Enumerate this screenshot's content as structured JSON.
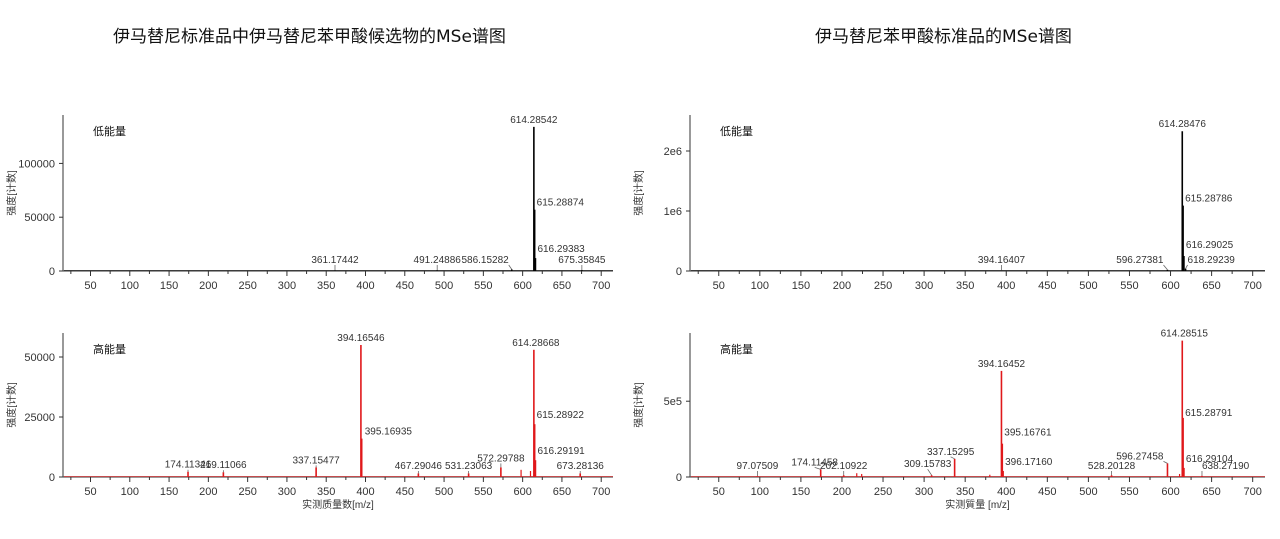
{
  "titles": {
    "left": "伊马替尼标准品中伊马替尼苯甲酸候选物的MSe谱图",
    "right": "伊马替尼苯甲酸标准品的MSe谱图"
  },
  "colors": {
    "low": "#000000",
    "high": "#e0181b",
    "axis": "#333333",
    "text": "#333333"
  },
  "chart_data": [
    {
      "type": "bar",
      "panel": "left-low",
      "panel_label": "低能量",
      "ylabel": "强度[计数]",
      "xlabel": "",
      "xlim": [
        15,
        715
      ],
      "ylim": [
        0,
        145000
      ],
      "xticks": [
        50,
        100,
        150,
        200,
        250,
        300,
        350,
        400,
        450,
        500,
        550,
        600,
        650,
        700
      ],
      "yticks": [
        0,
        50000,
        100000
      ],
      "ytick_labels": [
        "0",
        "50000",
        "100000"
      ],
      "peaks": [
        {
          "mz": 361.17442,
          "i": 600,
          "label": "361.17442"
        },
        {
          "mz": 491.24886,
          "i": 700,
          "label": "491.24886"
        },
        {
          "mz": 586.15282,
          "i": 1500,
          "label": "586.15282"
        },
        {
          "mz": 614.28542,
          "i": 134000,
          "label": "614.28542"
        },
        {
          "mz": 615.28874,
          "i": 57000,
          "label": "615.28874"
        },
        {
          "mz": 616.29383,
          "i": 12000,
          "label": "616.29383"
        },
        {
          "mz": 675.35845,
          "i": 800,
          "label": "675.35845"
        }
      ]
    },
    {
      "type": "bar",
      "panel": "left-high",
      "panel_label": "高能量",
      "ylabel": "强度[计数]",
      "xlabel": "实测质量数[m/z]",
      "xlim": [
        15,
        715
      ],
      "ylim": [
        0,
        60000
      ],
      "xticks": [
        50,
        100,
        150,
        200,
        250,
        300,
        350,
        400,
        450,
        500,
        550,
        600,
        650,
        700
      ],
      "yticks": [
        0,
        25000,
        50000
      ],
      "ytick_labels": [
        "0",
        "25000",
        "50000"
      ],
      "peaks": [
        {
          "mz": 174.11346,
          "i": 2200,
          "label": "174.11346"
        },
        {
          "mz": 219.11066,
          "i": 2000,
          "label": "219.11066"
        },
        {
          "mz": 337.15477,
          "i": 4000,
          "label": "337.15477"
        },
        {
          "mz": 394.16546,
          "i": 55000,
          "label": "394.16546"
        },
        {
          "mz": 395.16935,
          "i": 16000,
          "label": "395.16935"
        },
        {
          "mz": 467.29046,
          "i": 1500,
          "label": "467.29046"
        },
        {
          "mz": 531.23063,
          "i": 1500,
          "label": "531.23063"
        },
        {
          "mz": 572.29788,
          "i": 4000,
          "label": "572.29788"
        },
        {
          "mz": 614.28668,
          "i": 53000,
          "label": "614.28668"
        },
        {
          "mz": 615.28922,
          "i": 22000,
          "label": "615.28922"
        },
        {
          "mz": 616.29191,
          "i": 7000,
          "label": "616.29191"
        },
        {
          "mz": 673.28136,
          "i": 1500,
          "label": "673.28136"
        }
      ],
      "minor_peaks": [
        {
          "mz": 598,
          "i": 3000
        },
        {
          "mz": 610,
          "i": 2500
        }
      ]
    },
    {
      "type": "bar",
      "panel": "right-low",
      "panel_label": "低能量",
      "ylabel": "强度[计数]",
      "xlabel": "",
      "xlim": [
        15,
        715
      ],
      "ylim": [
        0,
        2600000
      ],
      "xticks": [
        50,
        100,
        150,
        200,
        250,
        300,
        350,
        400,
        450,
        500,
        550,
        600,
        650,
        700
      ],
      "yticks": [
        0,
        1000000,
        2000000
      ],
      "ytick_labels": [
        "0",
        "1e6",
        "2e6"
      ],
      "peaks": [
        {
          "mz": 394.16407,
          "i": 9000,
          "label": "394.16407"
        },
        {
          "mz": 596.27381,
          "i": 20000,
          "label": "596.27381"
        },
        {
          "mz": 614.28476,
          "i": 2330000,
          "label": "614.28476"
        },
        {
          "mz": 615.28786,
          "i": 1090000,
          "label": "615.28786"
        },
        {
          "mz": 616.29025,
          "i": 250000,
          "label": "616.29025"
        },
        {
          "mz": 618.29239,
          "i": 40000,
          "label": "618.29239"
        }
      ]
    },
    {
      "type": "bar",
      "panel": "right-high",
      "panel_label": "高能量",
      "ylabel": "强度[计数]",
      "xlabel": "实测質量 [m/z]",
      "xlim": [
        15,
        715
      ],
      "ylim": [
        0,
        950000
      ],
      "xticks": [
        50,
        100,
        150,
        200,
        250,
        300,
        350,
        400,
        450,
        500,
        550,
        600,
        650,
        700
      ],
      "yticks": [
        0,
        500000
      ],
      "ytick_labels": [
        "0",
        "5e5"
      ],
      "peaks": [
        {
          "mz": 97.07509,
          "i": 6000,
          "label": "97.07509"
        },
        {
          "mz": 174.11458,
          "i": 50000,
          "label": "174.11458"
        },
        {
          "mz": 202.10922,
          "i": 12000,
          "label": "202.10922"
        },
        {
          "mz": 309.15783,
          "i": 12000,
          "label": "309.15783"
        },
        {
          "mz": 337.15295,
          "i": 120000,
          "label": "337.15295"
        },
        {
          "mz": 394.16452,
          "i": 700000,
          "label": "394.16452"
        },
        {
          "mz": 395.16761,
          "i": 220000,
          "label": "395.16761"
        },
        {
          "mz": 396.1716,
          "i": 40000,
          "label": "396.17160"
        },
        {
          "mz": 528.20128,
          "i": 12000,
          "label": "528.20128"
        },
        {
          "mz": 596.27458,
          "i": 90000,
          "label": "596.27458"
        },
        {
          "mz": 614.28515,
          "i": 900000,
          "label": "614.28515"
        },
        {
          "mz": 615.28791,
          "i": 390000,
          "label": "615.28791"
        },
        {
          "mz": 616.29104,
          "i": 60000,
          "label": "616.29104"
        },
        {
          "mz": 638.2719,
          "i": 8000,
          "label": "638.27190"
        }
      ],
      "minor_peaks": [
        {
          "mz": 218,
          "i": 25000
        },
        {
          "mz": 224,
          "i": 20000
        },
        {
          "mz": 380,
          "i": 15000
        },
        {
          "mz": 611,
          "i": 20000
        }
      ]
    }
  ]
}
